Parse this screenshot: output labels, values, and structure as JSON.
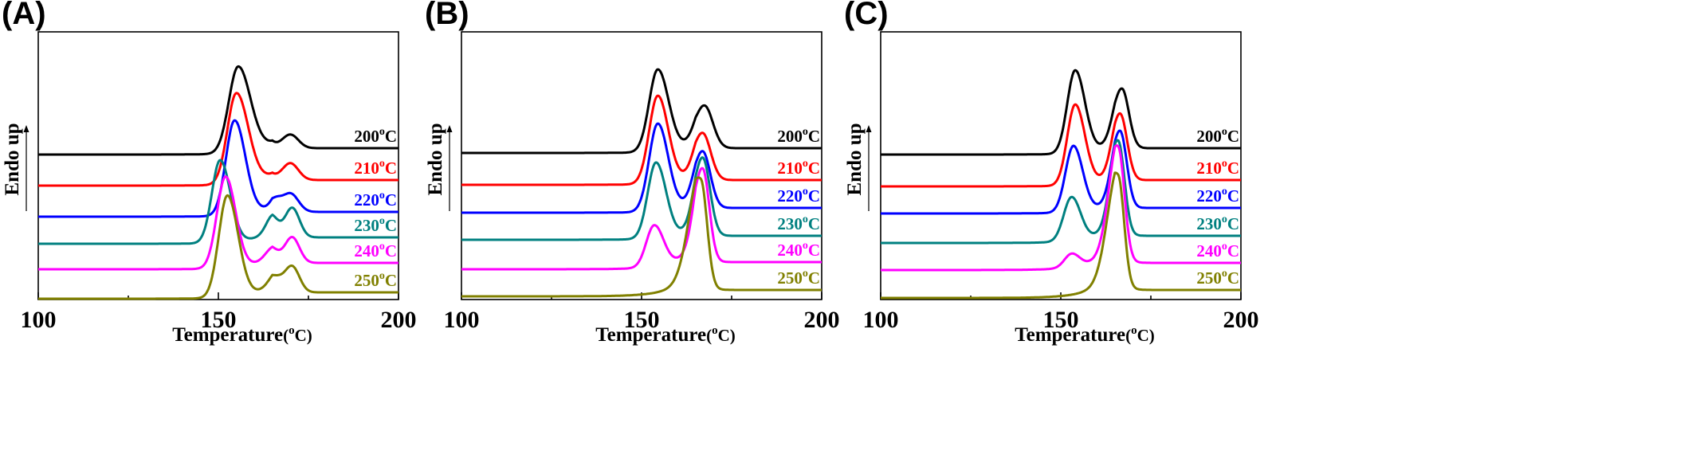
{
  "chart_data": [
    {
      "type": "line",
      "panel_label": "(A)",
      "xlabel_main": "Temperature",
      "xlabel_unit": "(",
      "xlabel_deg": "o",
      "xlabel_unit_end": "C)",
      "ylabel": "Endo up",
      "xlim": [
        100,
        200
      ],
      "xticks": [
        "100",
        "150",
        "200"
      ],
      "series": [
        {
          "label_num": "200",
          "color": "#000000",
          "baseline": 194,
          "end": 186,
          "peaks": [
            [
              155.5,
              108,
              2.6,
              3.4
            ],
            [
              170,
              17,
              2.2,
              2.2
            ]
          ],
          "shoulder": 0.7
        },
        {
          "label_num": "210",
          "color": "#ff0000",
          "baseline": 233,
          "end": 226,
          "peaks": [
            [
              155,
              114,
              2.5,
              3.3
            ],
            [
              170,
              21,
              2.2,
              2.2
            ]
          ],
          "shoulder": 0.7
        },
        {
          "label_num": "220",
          "color": "#0000ff",
          "baseline": 272,
          "end": 266,
          "peaks": [
            [
              154.5,
              119,
              2.4,
              3.0
            ],
            [
              170,
              23,
              2.3,
              2.2
            ],
            [
              166,
              10,
              1.5,
              1.5
            ]
          ],
          "shoulder": 0.7
        },
        {
          "label_num": "230",
          "color": "#008080",
          "baseline": 306,
          "end": 298,
          "peaks": [
            [
              150.5,
              104,
              2.3,
              2.8
            ],
            [
              170.5,
              37,
              2.0,
              2.0
            ],
            [
              165,
              20,
              1.8,
              1.8
            ]
          ],
          "shoulder": 0.8
        },
        {
          "label_num": "240",
          "color": "#ff00ff",
          "baseline": 338,
          "end": 330,
          "peaks": [
            [
              152,
              115,
              2.4,
              2.8
            ],
            [
              170.5,
              32,
              2.0,
              2.0
            ],
            [
              165,
              12,
              2.0,
              2.0
            ]
          ],
          "shoulder": 0.8
        },
        {
          "label_num": "250",
          "color": "#808000",
          "baseline": 375,
          "end": 367,
          "peaks": [
            [
              152.5,
              128,
              2.4,
              3.0
            ],
            [
              170.5,
              32,
              2.0,
              2.0
            ],
            [
              166,
              14,
              2.0,
              2.0
            ]
          ],
          "shoulder": 0.9
        }
      ]
    },
    {
      "type": "line",
      "panel_label": "(B)",
      "xlabel_main": "Temperature",
      "xlabel_unit": "(",
      "xlabel_deg": "o",
      "xlabel_unit_end": "C)",
      "ylabel": "Endo up",
      "xlim": [
        100,
        200
      ],
      "xticks": [
        "100",
        "150",
        "200"
      ],
      "series": [
        {
          "label_num": "200",
          "color": "#000000",
          "baseline": 192,
          "end": 186,
          "peaks": [
            [
              154.5,
              103,
              2.4,
              3.0
            ],
            [
              167.5,
              52,
              2.5,
              2.3
            ]
          ],
          "shoulder": 0.7
        },
        {
          "label_num": "210",
          "color": "#ff0000",
          "baseline": 232,
          "end": 226,
          "peaks": [
            [
              154.5,
              110,
              2.4,
              2.9
            ],
            [
              167,
              57,
              2.4,
              2.2
            ]
          ],
          "shoulder": 0.7
        },
        {
          "label_num": "220",
          "color": "#0000ff",
          "baseline": 267,
          "end": 261,
          "peaks": [
            [
              154.5,
              110,
              2.4,
              2.9
            ],
            [
              167,
              69,
              2.4,
              2.1
            ]
          ],
          "shoulder": 0.7
        },
        {
          "label_num": "230",
          "color": "#008080",
          "baseline": 301,
          "end": 296,
          "peaks": [
            [
              154,
              95,
              2.3,
              2.8
            ],
            [
              167,
              95,
              2.3,
              2.0
            ]
          ],
          "shoulder": 0.9
        },
        {
          "label_num": "240",
          "color": "#ff00ff",
          "baseline": 338,
          "end": 329,
          "peaks": [
            [
              153.5,
              52,
              2.2,
              2.6
            ],
            [
              167,
              112,
              2.3,
              1.8
            ]
          ],
          "shoulder": 1.6
        },
        {
          "label_num": "250",
          "color": "#808000",
          "baseline": 372,
          "end": 364,
          "peaks": [
            [
              166.5,
              128,
              3.2,
              1.7
            ]
          ],
          "shoulder": 2.2
        }
      ]
    },
    {
      "type": "line",
      "panel_label": "(C)",
      "xlabel_main": "Temperature",
      "xlabel_unit": "(",
      "xlabel_deg": "o",
      "xlabel_unit_end": "C)",
      "ylabel": "Endo up",
      "xlim": [
        100,
        200
      ],
      "xticks": [
        "100",
        "150",
        "200"
      ],
      "series": [
        {
          "label_num": "200",
          "color": "#000000",
          "baseline": 194,
          "end": 186,
          "peaks": [
            [
              154,
              104,
              2.2,
              2.7
            ],
            [
              167,
              73,
              2.3,
              1.9
            ]
          ],
          "shoulder": 0.7
        },
        {
          "label_num": "210",
          "color": "#ff0000",
          "baseline": 234,
          "end": 226,
          "peaks": [
            [
              154,
              101,
              2.2,
              2.7
            ],
            [
              166.5,
              81,
              2.2,
              1.9
            ]
          ],
          "shoulder": 0.7
        },
        {
          "label_num": "220",
          "color": "#0000ff",
          "baseline": 268,
          "end": 261,
          "peaks": [
            [
              153.5,
              83,
              2.2,
              2.6
            ],
            [
              166.5,
              93,
              2.2,
              1.8
            ]
          ],
          "shoulder": 0.9
        },
        {
          "label_num": "230",
          "color": "#008080",
          "baseline": 305,
          "end": 296,
          "peaks": [
            [
              153,
              55,
              2.2,
              2.5
            ],
            [
              166,
              111,
              2.2,
              1.7
            ]
          ],
          "shoulder": 1.4
        },
        {
          "label_num": "240",
          "color": "#ff00ff",
          "baseline": 339,
          "end": 330,
          "peaks": [
            [
              153,
              17,
              2.0,
              2.2
            ],
            [
              166,
              133,
              2.6,
              1.7
            ]
          ],
          "shoulder": 2.0
        },
        {
          "label_num": "250",
          "color": "#808000",
          "baseline": 374,
          "end": 364,
          "peaks": [
            [
              166,
              130,
              3.0,
              1.6
            ]
          ],
          "shoulder": 2.2
        }
      ]
    }
  ],
  "label_deg": "o",
  "label_unit": "C"
}
